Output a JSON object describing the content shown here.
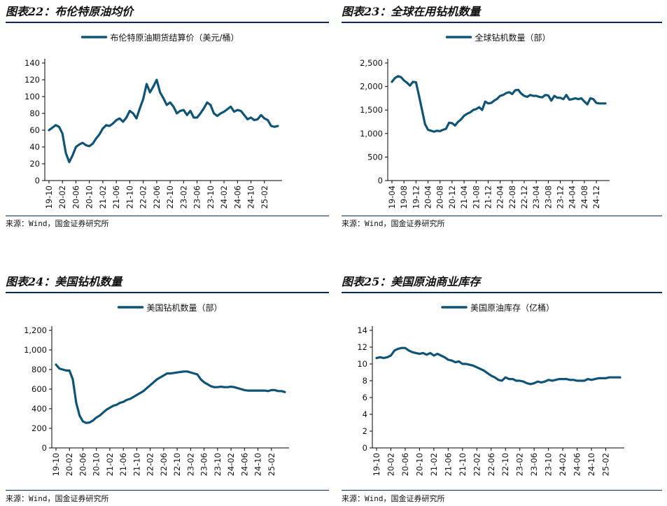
{
  "panels": [
    {
      "title": "图表22：布伦特原油均价",
      "source": "来源：Wind，国金证券研究所",
      "chart_data": {
        "type": "line",
        "legend": "布伦特原油期货结算价（美元/桶）",
        "legend_position": "top",
        "color": "#0f5475",
        "ylim": [
          0,
          140
        ],
        "yticks": [
          "0",
          "20",
          "40",
          "60",
          "80",
          "100",
          "120",
          "140"
        ],
        "xticks": [
          "19-10",
          "20-02",
          "20-06",
          "20-10",
          "21-02",
          "21-06",
          "21-10",
          "22-02",
          "22-06",
          "22-10",
          "23-02",
          "23-06",
          "23-10",
          "24-02",
          "24-06",
          "24-10",
          "25-02"
        ],
        "x": [
          "19-10",
          "19-11",
          "19-12",
          "20-01",
          "20-02",
          "20-03",
          "20-04",
          "20-05",
          "20-06",
          "20-07",
          "20-08",
          "20-09",
          "20-10",
          "20-11",
          "20-12",
          "21-01",
          "21-02",
          "21-03",
          "21-04",
          "21-05",
          "21-06",
          "21-07",
          "21-08",
          "21-09",
          "21-10",
          "21-11",
          "21-12",
          "22-01",
          "22-02",
          "22-03",
          "22-04",
          "22-05",
          "22-06",
          "22-07",
          "22-08",
          "22-09",
          "22-10",
          "22-11",
          "22-12",
          "23-01",
          "23-02",
          "23-03",
          "23-04",
          "23-05",
          "23-06",
          "23-07",
          "23-08",
          "23-09",
          "23-10",
          "23-11",
          "23-12",
          "24-01",
          "24-02",
          "24-03",
          "24-04",
          "24-05",
          "24-06",
          "24-07",
          "24-08",
          "24-09",
          "24-10",
          "24-11",
          "24-12",
          "25-01",
          "25-02",
          "25-03",
          "25-04",
          "25-05",
          "25-06"
        ],
        "values": [
          60,
          63,
          66,
          64,
          56,
          33,
          22,
          30,
          40,
          43,
          45,
          42,
          41,
          44,
          50,
          55,
          62,
          66,
          65,
          68,
          72,
          74,
          70,
          75,
          83,
          80,
          74,
          86,
          97,
          115,
          105,
          112,
          120,
          105,
          98,
          90,
          93,
          88,
          80,
          83,
          84,
          78,
          83,
          75,
          75,
          80,
          86,
          93,
          90,
          80,
          77,
          80,
          82,
          85,
          88,
          82,
          84,
          83,
          78,
          73,
          75,
          72,
          73,
          78,
          74,
          72,
          65,
          64,
          65
        ]
      }
    },
    {
      "title": "图表23：全球在用钻机数量",
      "source": "来源：Wind，国金证券研究所",
      "chart_data": {
        "type": "line",
        "legend": "全球钻机数量（部）",
        "legend_position": "top",
        "color": "#0f5475",
        "ylim": [
          0,
          2500
        ],
        "yticks": [
          "0",
          "500",
          "1,000",
          "1,500",
          "2,000",
          "2,500"
        ],
        "xticks": [
          "19-04",
          "19-08",
          "19-12",
          "20-04",
          "20-08",
          "20-12",
          "21-04",
          "21-08",
          "21-12",
          "22-04",
          "22-08",
          "22-12",
          "23-04",
          "23-08",
          "23-12",
          "24-04",
          "24-08",
          "24-12"
        ],
        "x": [
          "19-04",
          "19-05",
          "19-06",
          "19-07",
          "19-08",
          "19-09",
          "19-10",
          "19-11",
          "19-12",
          "20-01",
          "20-02",
          "20-03",
          "20-04",
          "20-05",
          "20-06",
          "20-07",
          "20-08",
          "20-09",
          "20-10",
          "20-11",
          "20-12",
          "21-01",
          "21-02",
          "21-03",
          "21-04",
          "21-05",
          "21-06",
          "21-07",
          "21-08",
          "21-09",
          "21-10",
          "21-11",
          "21-12",
          "22-01",
          "22-02",
          "22-03",
          "22-04",
          "22-05",
          "22-06",
          "22-07",
          "22-08",
          "22-09",
          "22-10",
          "22-11",
          "22-12",
          "23-01",
          "23-02",
          "23-03",
          "23-04",
          "23-05",
          "23-06",
          "23-07",
          "23-08",
          "23-09",
          "23-10",
          "23-11",
          "23-12",
          "24-01",
          "24-02",
          "24-03",
          "24-04",
          "24-05",
          "24-06",
          "24-07",
          "24-08",
          "24-09",
          "24-10",
          "24-11",
          "24-12",
          "25-01",
          "25-02",
          "25-03"
        ],
        "values": [
          2100,
          2180,
          2220,
          2200,
          2130,
          2080,
          2020,
          2100,
          2090,
          1800,
          1500,
          1200,
          1080,
          1060,
          1040,
          1060,
          1050,
          1080,
          1100,
          1230,
          1220,
          1170,
          1250,
          1300,
          1380,
          1420,
          1450,
          1500,
          1520,
          1560,
          1500,
          1680,
          1640,
          1650,
          1700,
          1740,
          1800,
          1820,
          1860,
          1880,
          1840,
          1920,
          1930,
          1850,
          1800,
          1780,
          1820,
          1800,
          1800,
          1780,
          1770,
          1820,
          1810,
          1700,
          1800,
          1760,
          1760,
          1730,
          1820,
          1720,
          1730,
          1750,
          1730,
          1750,
          1680,
          1620,
          1750,
          1730,
          1650,
          1640,
          1640,
          1640
        ]
      }
    },
    {
      "title": "图表24：美国钻机数量",
      "source": "来源：Wind，国金证券研究所",
      "chart_data": {
        "type": "line",
        "legend": "美国钻机数量（部）",
        "legend_position": "top",
        "color": "#0f5475",
        "ylim": [
          0,
          1200
        ],
        "yticks": [
          "0",
          "200",
          "400",
          "600",
          "800",
          "1,000",
          "1,200"
        ],
        "xticks": [
          "19-10",
          "20-02",
          "20-06",
          "20-10",
          "21-02",
          "21-06",
          "21-10",
          "22-02",
          "22-06",
          "22-10",
          "23-02",
          "23-06",
          "23-10",
          "24-02",
          "24-06",
          "24-10",
          "25-02"
        ],
        "x": [
          "19-10",
          "19-11",
          "19-12",
          "20-01",
          "20-02",
          "20-03",
          "20-04",
          "20-05",
          "20-06",
          "20-07",
          "20-08",
          "20-09",
          "20-10",
          "20-11",
          "20-12",
          "21-01",
          "21-02",
          "21-03",
          "21-04",
          "21-05",
          "21-06",
          "21-07",
          "21-08",
          "21-09",
          "21-10",
          "21-11",
          "21-12",
          "22-01",
          "22-02",
          "22-03",
          "22-04",
          "22-05",
          "22-06",
          "22-07",
          "22-08",
          "22-09",
          "22-10",
          "22-11",
          "22-12",
          "23-01",
          "23-02",
          "23-03",
          "23-04",
          "23-05",
          "23-06",
          "23-07",
          "23-08",
          "23-09",
          "23-10",
          "23-11",
          "23-12",
          "24-01",
          "24-02",
          "24-03",
          "24-04",
          "24-05",
          "24-06",
          "24-07",
          "24-08",
          "24-09",
          "24-10",
          "24-11",
          "24-12",
          "25-01",
          "25-02",
          "25-03",
          "25-04",
          "25-05",
          "25-06"
        ],
        "values": [
          850,
          810,
          800,
          790,
          790,
          700,
          460,
          330,
          270,
          255,
          260,
          280,
          310,
          330,
          360,
          390,
          410,
          430,
          440,
          460,
          470,
          490,
          500,
          520,
          540,
          560,
          580,
          610,
          640,
          670,
          700,
          720,
          740,
          760,
          760,
          765,
          770,
          775,
          780,
          780,
          770,
          760,
          750,
          700,
          670,
          650,
          630,
          620,
          620,
          625,
          620,
          620,
          625,
          620,
          610,
          600,
          590,
          585,
          585,
          585,
          585,
          585,
          585,
          580,
          590,
          590,
          580,
          580,
          570
        ]
      }
    },
    {
      "title": "图表25：美国原油商业库存",
      "source": "来源：Wind，国金证券研究所",
      "chart_data": {
        "type": "line",
        "legend": "美国原油库存（亿桶）",
        "legend_position": "top",
        "color": "#0f5475",
        "ylim": [
          0,
          14
        ],
        "yticks": [
          "0",
          "2",
          "4",
          "6",
          "8",
          "10",
          "12",
          "14"
        ],
        "xticks": [
          "19-10",
          "20-02",
          "20-06",
          "20-10",
          "21-02",
          "21-06",
          "21-10",
          "22-02",
          "22-06",
          "22-10",
          "23-02",
          "23-06",
          "23-10",
          "24-02",
          "24-06",
          "24-10",
          "25-02"
        ],
        "x": [
          "19-10",
          "19-11",
          "19-12",
          "20-01",
          "20-02",
          "20-03",
          "20-04",
          "20-05",
          "20-06",
          "20-07",
          "20-08",
          "20-09",
          "20-10",
          "20-11",
          "20-12",
          "21-01",
          "21-02",
          "21-03",
          "21-04",
          "21-05",
          "21-06",
          "21-07",
          "21-08",
          "21-09",
          "21-10",
          "21-11",
          "21-12",
          "22-01",
          "22-02",
          "22-03",
          "22-04",
          "22-05",
          "22-06",
          "22-07",
          "22-08",
          "22-09",
          "22-10",
          "22-11",
          "22-12",
          "23-01",
          "23-02",
          "23-03",
          "23-04",
          "23-05",
          "23-06",
          "23-07",
          "23-08",
          "23-09",
          "23-10",
          "23-11",
          "23-12",
          "24-01",
          "24-02",
          "24-03",
          "24-04",
          "24-05",
          "24-06",
          "24-07",
          "24-08",
          "24-09",
          "24-10",
          "24-11",
          "24-12",
          "25-01",
          "25-02",
          "25-03",
          "25-04",
          "25-05",
          "25-06"
        ],
        "values": [
          10.7,
          10.8,
          10.7,
          10.8,
          11.0,
          11.6,
          11.8,
          11.9,
          11.9,
          11.6,
          11.4,
          11.3,
          11.2,
          11.3,
          11.1,
          11.3,
          11.0,
          11.2,
          11.0,
          10.8,
          10.5,
          10.4,
          10.2,
          10.3,
          10.0,
          10.0,
          9.9,
          9.8,
          9.6,
          9.4,
          9.2,
          8.9,
          8.6,
          8.4,
          8.1,
          8.0,
          8.4,
          8.2,
          8.2,
          8.0,
          8.0,
          7.9,
          7.7,
          7.6,
          7.7,
          7.9,
          7.8,
          7.9,
          8.1,
          8.0,
          8.1,
          8.2,
          8.2,
          8.2,
          8.1,
          8.1,
          8.0,
          8.0,
          8.0,
          8.2,
          8.1,
          8.2,
          8.3,
          8.3,
          8.3,
          8.4,
          8.4,
          8.4,
          8.4
        ]
      }
    }
  ]
}
